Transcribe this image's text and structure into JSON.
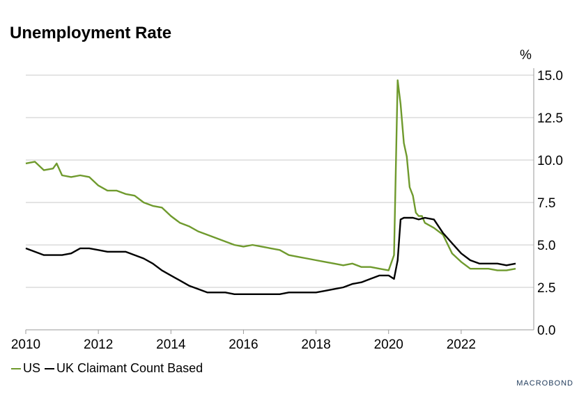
{
  "title": "Unemployment Rate",
  "brand": "MACROBOND",
  "chart_data": {
    "type": "line",
    "title": "Unemployment Rate",
    "yunit": "%",
    "ylim": [
      0,
      15
    ],
    "xlim": [
      2010.0,
      2024.0
    ],
    "y_ticks": [
      "0.0",
      "2.5",
      "5.0",
      "7.5",
      "10.0",
      "12.5",
      "15.0"
    ],
    "y_tick_values": [
      0,
      2.5,
      5,
      7.5,
      10,
      12.5,
      15
    ],
    "x_ticks": [
      "2010",
      "2012",
      "2014",
      "2016",
      "2018",
      "2020",
      "2022"
    ],
    "x_tick_values": [
      2010,
      2012,
      2014,
      2016,
      2018,
      2020,
      2022
    ],
    "grid": true,
    "legend_position": "bottom-left",
    "series": [
      {
        "name": "US",
        "color": "#6f9a2d",
        "x": [
          2010.0,
          2010.25,
          2010.5,
          2010.75,
          2010.85,
          2011.0,
          2011.25,
          2011.5,
          2011.75,
          2012.0,
          2012.25,
          2012.5,
          2012.75,
          2013.0,
          2013.25,
          2013.5,
          2013.75,
          2014.0,
          2014.25,
          2014.5,
          2014.75,
          2015.0,
          2015.25,
          2015.5,
          2015.75,
          2016.0,
          2016.25,
          2016.5,
          2016.75,
          2017.0,
          2017.25,
          2017.5,
          2017.75,
          2018.0,
          2018.25,
          2018.5,
          2018.75,
          2019.0,
          2019.25,
          2019.5,
          2019.75,
          2020.0,
          2020.15,
          2020.25,
          2020.33,
          2020.42,
          2020.5,
          2020.58,
          2020.67,
          2020.75,
          2020.83,
          2020.92,
          2021.0,
          2021.25,
          2021.5,
          2021.75,
          2022.0,
          2022.25,
          2022.5,
          2022.75,
          2023.0,
          2023.25,
          2023.5
        ],
        "y": [
          9.8,
          9.9,
          9.4,
          9.5,
          9.8,
          9.1,
          9.0,
          9.1,
          9.0,
          8.5,
          8.2,
          8.2,
          8.0,
          7.9,
          7.5,
          7.3,
          7.2,
          6.7,
          6.3,
          6.1,
          5.8,
          5.6,
          5.4,
          5.2,
          5.0,
          4.9,
          5.0,
          4.9,
          4.8,
          4.7,
          4.4,
          4.3,
          4.2,
          4.1,
          4.0,
          3.9,
          3.8,
          3.9,
          3.7,
          3.7,
          3.6,
          3.5,
          4.4,
          14.7,
          13.3,
          11.0,
          10.2,
          8.4,
          7.9,
          6.9,
          6.7,
          6.7,
          6.3,
          6.0,
          5.6,
          4.5,
          4.0,
          3.6,
          3.6,
          3.6,
          3.5,
          3.5,
          3.6
        ]
      },
      {
        "name": "UK Claimant Count Based",
        "color": "#000000",
        "x": [
          2010.0,
          2010.25,
          2010.5,
          2010.75,
          2011.0,
          2011.25,
          2011.5,
          2011.75,
          2012.0,
          2012.25,
          2012.5,
          2012.75,
          2013.0,
          2013.25,
          2013.5,
          2013.75,
          2014.0,
          2014.25,
          2014.5,
          2014.75,
          2015.0,
          2015.25,
          2015.5,
          2015.75,
          2016.0,
          2016.25,
          2016.5,
          2016.75,
          2017.0,
          2017.25,
          2017.5,
          2017.75,
          2018.0,
          2018.25,
          2018.5,
          2018.75,
          2019.0,
          2019.25,
          2019.5,
          2019.75,
          2020.0,
          2020.15,
          2020.25,
          2020.33,
          2020.42,
          2020.5,
          2020.67,
          2020.83,
          2021.0,
          2021.25,
          2021.5,
          2021.75,
          2022.0,
          2022.25,
          2022.5,
          2022.75,
          2023.0,
          2023.25,
          2023.5
        ],
        "y": [
          4.8,
          4.6,
          4.4,
          4.4,
          4.4,
          4.5,
          4.8,
          4.8,
          4.7,
          4.6,
          4.6,
          4.6,
          4.4,
          4.2,
          3.9,
          3.5,
          3.2,
          2.9,
          2.6,
          2.4,
          2.2,
          2.2,
          2.2,
          2.1,
          2.1,
          2.1,
          2.1,
          2.1,
          2.1,
          2.2,
          2.2,
          2.2,
          2.2,
          2.3,
          2.4,
          2.5,
          2.7,
          2.8,
          3.0,
          3.2,
          3.2,
          3.0,
          4.1,
          6.5,
          6.6,
          6.6,
          6.6,
          6.5,
          6.6,
          6.5,
          5.7,
          5.1,
          4.5,
          4.1,
          3.9,
          3.9,
          3.9,
          3.8,
          3.9
        ]
      }
    ]
  }
}
